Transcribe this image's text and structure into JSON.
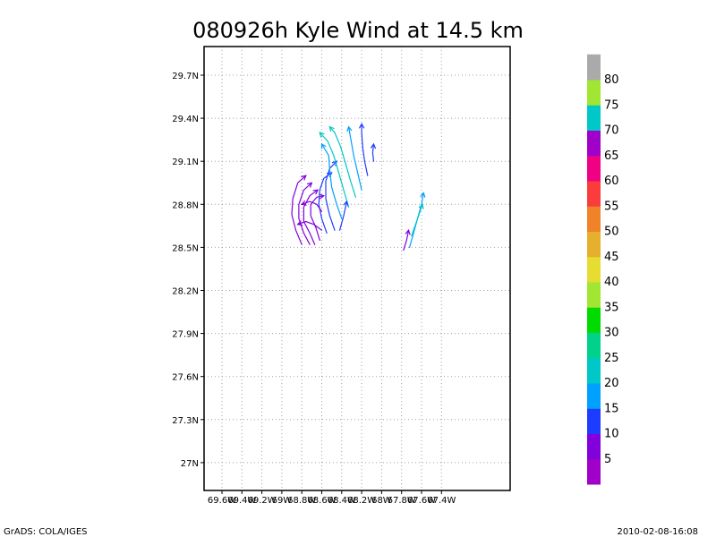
{
  "title": "080926h Kyle Wind at 14.5 km",
  "lat_labels": [
    "29.7N",
    "29.4N",
    "29.1N",
    "28.8N",
    "28.5N",
    "28.2N",
    "27.9N",
    "27.6N",
    "27.3N",
    "27N"
  ],
  "lon_labels": [
    "69.6W",
    "69.4W",
    "69.2W",
    "69W",
    "68.8W",
    "68.6W",
    "68.4W",
    "68.2W",
    "68W",
    "67.8W",
    "67.6W",
    "67.4W"
  ],
  "colorbar": {
    "labels": [
      "5",
      "10",
      "15",
      "20",
      "25",
      "30",
      "35",
      "40",
      "45",
      "50",
      "55",
      "60",
      "65",
      "70",
      "75",
      "80"
    ],
    "colors": [
      "#a000c8",
      "#8200dc",
      "#1e3cff",
      "#00a0ff",
      "#00c8c8",
      "#00d28c",
      "#00dc00",
      "#a0e632",
      "#e6dc32",
      "#e6af2d",
      "#f08228",
      "#fa3c3c",
      "#f00082",
      "#a000c8",
      "#00c8c8",
      "#a0e632",
      "#aaaaaa"
    ]
  },
  "footer": {
    "left": "GrADS: COLA/IGES",
    "right": "2010-02-08-16:08"
  },
  "chart_data": {
    "type": "streamline",
    "title": "080926h Kyle Wind at 14.5 km",
    "xlim": [
      "69.7W",
      "67.35W"
    ],
    "ylim": [
      "26.8N",
      "30.0N"
    ],
    "grid": true,
    "legend": "colorbar-right",
    "streamlines": [
      {
        "color_class": "10",
        "points": [
          [
            -68.67,
            28.52
          ],
          [
            -68.72,
            28.6
          ],
          [
            -68.78,
            28.68
          ],
          [
            -68.78,
            28.78
          ],
          [
            -68.72,
            28.86
          ],
          [
            -68.64,
            28.9
          ]
        ]
      },
      {
        "color_class": "10",
        "points": [
          [
            -68.72,
            28.52
          ],
          [
            -68.78,
            28.6
          ],
          [
            -68.83,
            28.7
          ],
          [
            -68.83,
            28.8
          ],
          [
            -68.78,
            28.9
          ],
          [
            -68.7,
            28.95
          ]
        ]
      },
      {
        "color_class": "10",
        "points": [
          [
            -68.8,
            28.52
          ],
          [
            -68.86,
            28.62
          ],
          [
            -68.9,
            28.73
          ],
          [
            -68.89,
            28.84
          ],
          [
            -68.84,
            28.95
          ],
          [
            -68.76,
            29.0
          ]
        ]
      },
      {
        "color_class": "10",
        "points": [
          [
            -68.62,
            28.55
          ],
          [
            -68.66,
            28.64
          ],
          [
            -68.71,
            28.72
          ],
          [
            -68.71,
            28.8
          ],
          [
            -68.65,
            28.85
          ],
          [
            -68.58,
            28.86
          ]
        ]
      },
      {
        "color_class": "15",
        "points": [
          [
            -68.55,
            28.6
          ],
          [
            -68.6,
            28.7
          ],
          [
            -68.63,
            28.8
          ],
          [
            -68.62,
            28.9
          ],
          [
            -68.58,
            28.98
          ],
          [
            -68.5,
            29.02
          ]
        ]
      },
      {
        "color_class": "15",
        "points": [
          [
            -68.47,
            28.62
          ],
          [
            -68.52,
            28.72
          ],
          [
            -68.56,
            28.84
          ],
          [
            -68.56,
            28.96
          ],
          [
            -68.52,
            29.05
          ],
          [
            -68.45,
            29.1
          ]
        ]
      },
      {
        "color_class": "20",
        "points": [
          [
            -68.4,
            28.7
          ],
          [
            -68.45,
            28.8
          ],
          [
            -68.5,
            28.92
          ],
          [
            -68.52,
            29.04
          ],
          [
            -68.53,
            29.14
          ],
          [
            -68.6,
            29.22
          ]
        ]
      },
      {
        "color_class": "25",
        "points": [
          [
            -68.33,
            28.78
          ],
          [
            -68.38,
            28.9
          ],
          [
            -68.43,
            29.02
          ],
          [
            -68.48,
            29.14
          ],
          [
            -68.54,
            29.24
          ],
          [
            -68.62,
            29.3
          ]
        ]
      },
      {
        "color_class": "25",
        "points": [
          [
            -68.26,
            28.85
          ],
          [
            -68.31,
            28.96
          ],
          [
            -68.36,
            29.08
          ],
          [
            -68.41,
            29.2
          ],
          [
            -68.47,
            29.3
          ],
          [
            -68.52,
            29.34
          ]
        ]
      },
      {
        "color_class": "20",
        "points": [
          [
            -68.2,
            28.9
          ],
          [
            -68.24,
            29.02
          ],
          [
            -68.28,
            29.14
          ],
          [
            -68.31,
            29.26
          ],
          [
            -68.33,
            29.34
          ]
        ]
      },
      {
        "color_class": "15",
        "points": [
          [
            -68.14,
            29.0
          ],
          [
            -68.17,
            29.1
          ],
          [
            -68.19,
            29.2
          ],
          [
            -68.2,
            29.3
          ],
          [
            -68.2,
            29.36
          ]
        ]
      },
      {
        "color_class": "15",
        "points": [
          [
            -68.08,
            29.1
          ],
          [
            -68.09,
            29.16
          ],
          [
            -68.08,
            29.22
          ]
        ]
      },
      {
        "color_class": "15",
        "points": [
          [
            -68.42,
            28.62
          ],
          [
            -68.38,
            28.72
          ],
          [
            -68.35,
            28.82
          ]
        ]
      },
      {
        "color_class": "10",
        "points": [
          [
            -68.6,
            28.75
          ],
          [
            -68.65,
            28.8
          ],
          [
            -68.72,
            28.82
          ],
          [
            -68.8,
            28.8
          ]
        ]
      },
      {
        "color_class": "10",
        "points": [
          [
            -68.6,
            28.62
          ],
          [
            -68.68,
            28.66
          ],
          [
            -68.76,
            28.68
          ],
          [
            -68.84,
            28.66
          ]
        ]
      },
      {
        "color_class": "10",
        "points": [
          [
            -67.78,
            28.48
          ],
          [
            -67.75,
            28.55
          ],
          [
            -67.73,
            28.62
          ]
        ]
      },
      {
        "color_class": "20",
        "points": [
          [
            -67.72,
            28.5
          ],
          [
            -67.68,
            28.6
          ],
          [
            -67.64,
            28.7
          ],
          [
            -67.6,
            28.8
          ],
          [
            -67.58,
            28.88
          ]
        ]
      },
      {
        "color_class": "25",
        "points": [
          [
            -67.7,
            28.58
          ],
          [
            -67.66,
            28.66
          ],
          [
            -67.62,
            28.74
          ],
          [
            -67.59,
            28.8
          ]
        ]
      }
    ]
  }
}
